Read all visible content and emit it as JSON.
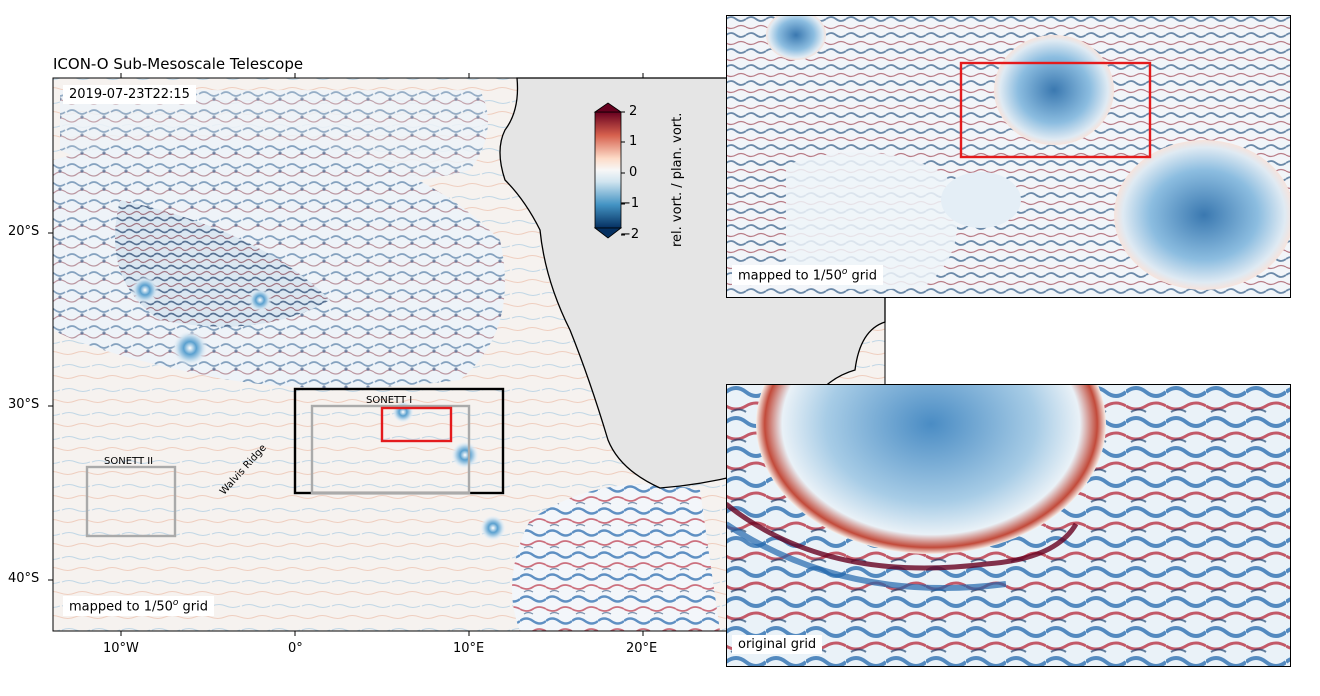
{
  "figure": {
    "title": "ICON-O Sub-Mesoscale Telescope",
    "timestamp": "2019-07-23T22:15",
    "main_grid_label_prefix": "mapped to 1/50",
    "main_grid_label_suffix": " grid",
    "grid_superscript": "o"
  },
  "axes": {
    "y_ticks": [
      "20°S",
      "30°S",
      "40°S"
    ],
    "x_ticks": [
      "10°W",
      "0°",
      "10°E",
      "20°E"
    ]
  },
  "annotations": {
    "sonett1": "SONETT I",
    "sonett2": "SONETT II",
    "walvis": "Walvis Ridge"
  },
  "colorbar": {
    "ticks": [
      "2",
      "1",
      "0",
      "−1",
      "−2"
    ],
    "label": "rel. vort. / plan. vort.",
    "colors": {
      "max": "#67001f",
      "pos": "#d6604d",
      "zero": "#f7f7f7",
      "neg": "#4393c3",
      "min": "#053061"
    }
  },
  "insets": {
    "top_label_prefix": "mapped to 1/50",
    "top_label_suffix": " grid",
    "bottom_label": "original grid"
  },
  "colors": {
    "land": "#e5e5e5",
    "ocean": "#f7f5f3",
    "red_box": "#e41a1c",
    "gray_box": "#aaaaaa",
    "black_box": "#000000"
  }
}
